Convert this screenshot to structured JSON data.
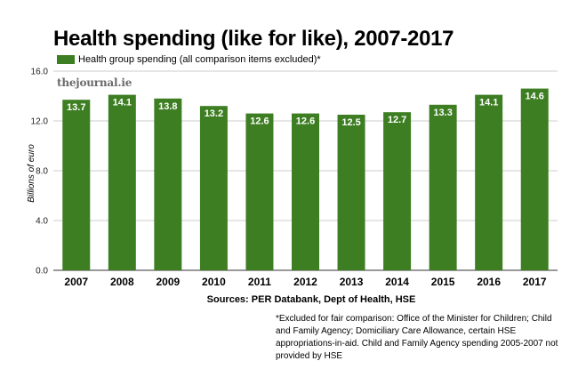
{
  "colors": {
    "bar": "#3e7e23",
    "grid": "#cccccc",
    "axis": "#333333"
  },
  "notes": {
    "sources": "Sources: PER Databank, Dept of Health, HSE",
    "footnote": "*Excluded for fair comparison: Office of the Minister for Children; Child and Family Agency; Domiciliary Care Allowance, certain HSE appropriations-in-aid. Child and Family Agency spending 2005-2007 not provided by HSE"
  },
  "watermark": "thejournal.ie",
  "chart_data": {
    "type": "bar",
    "title": "Health spending (like for like), 2007-2017",
    "xlabel": "",
    "ylabel": "Billions of euro",
    "categories": [
      "2007",
      "2008",
      "2009",
      "2010",
      "2011",
      "2012",
      "2013",
      "2014",
      "2015",
      "2016",
      "2017"
    ],
    "series": [
      {
        "name": "Health group spending (all comparison items excluded)*",
        "values": [
          13.7,
          14.1,
          13.8,
          13.2,
          12.6,
          12.6,
          12.5,
          12.7,
          13.3,
          14.1,
          14.6
        ],
        "labels": [
          "13.7",
          "14.1",
          "13.8",
          "13.2",
          "12.6",
          "12.6",
          "12.5",
          "12.7",
          "13.3",
          "14.1",
          "14.6"
        ]
      }
    ],
    "ylim": [
      0,
      16
    ],
    "yticks": [
      "0.0",
      "4.0",
      "8.0",
      "12.0",
      "16.0"
    ],
    "grid": true,
    "legend": "top-left"
  }
}
